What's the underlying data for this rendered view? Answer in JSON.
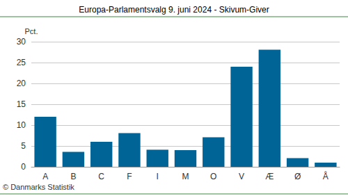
{
  "chart_data": {
    "type": "bar",
    "title": "Europa-Parlamentsvalg 9. juni 2024 - Skivum-Giver",
    "ylabel": "Pct.",
    "annotations": [
      "© Danmarks Statistik"
    ],
    "categories": [
      "A",
      "B",
      "C",
      "F",
      "I",
      "M",
      "O",
      "V",
      "Æ",
      "Ø",
      "Å"
    ],
    "values": [
      12,
      3.6,
      6,
      8.1,
      4.1,
      4,
      7.1,
      24,
      28.1,
      2.1,
      1
    ],
    "color": "#006496",
    "ylim": [
      0,
      30
    ],
    "yticks": [
      0,
      5,
      10,
      15,
      20,
      25,
      30
    ],
    "grid": true
  }
}
